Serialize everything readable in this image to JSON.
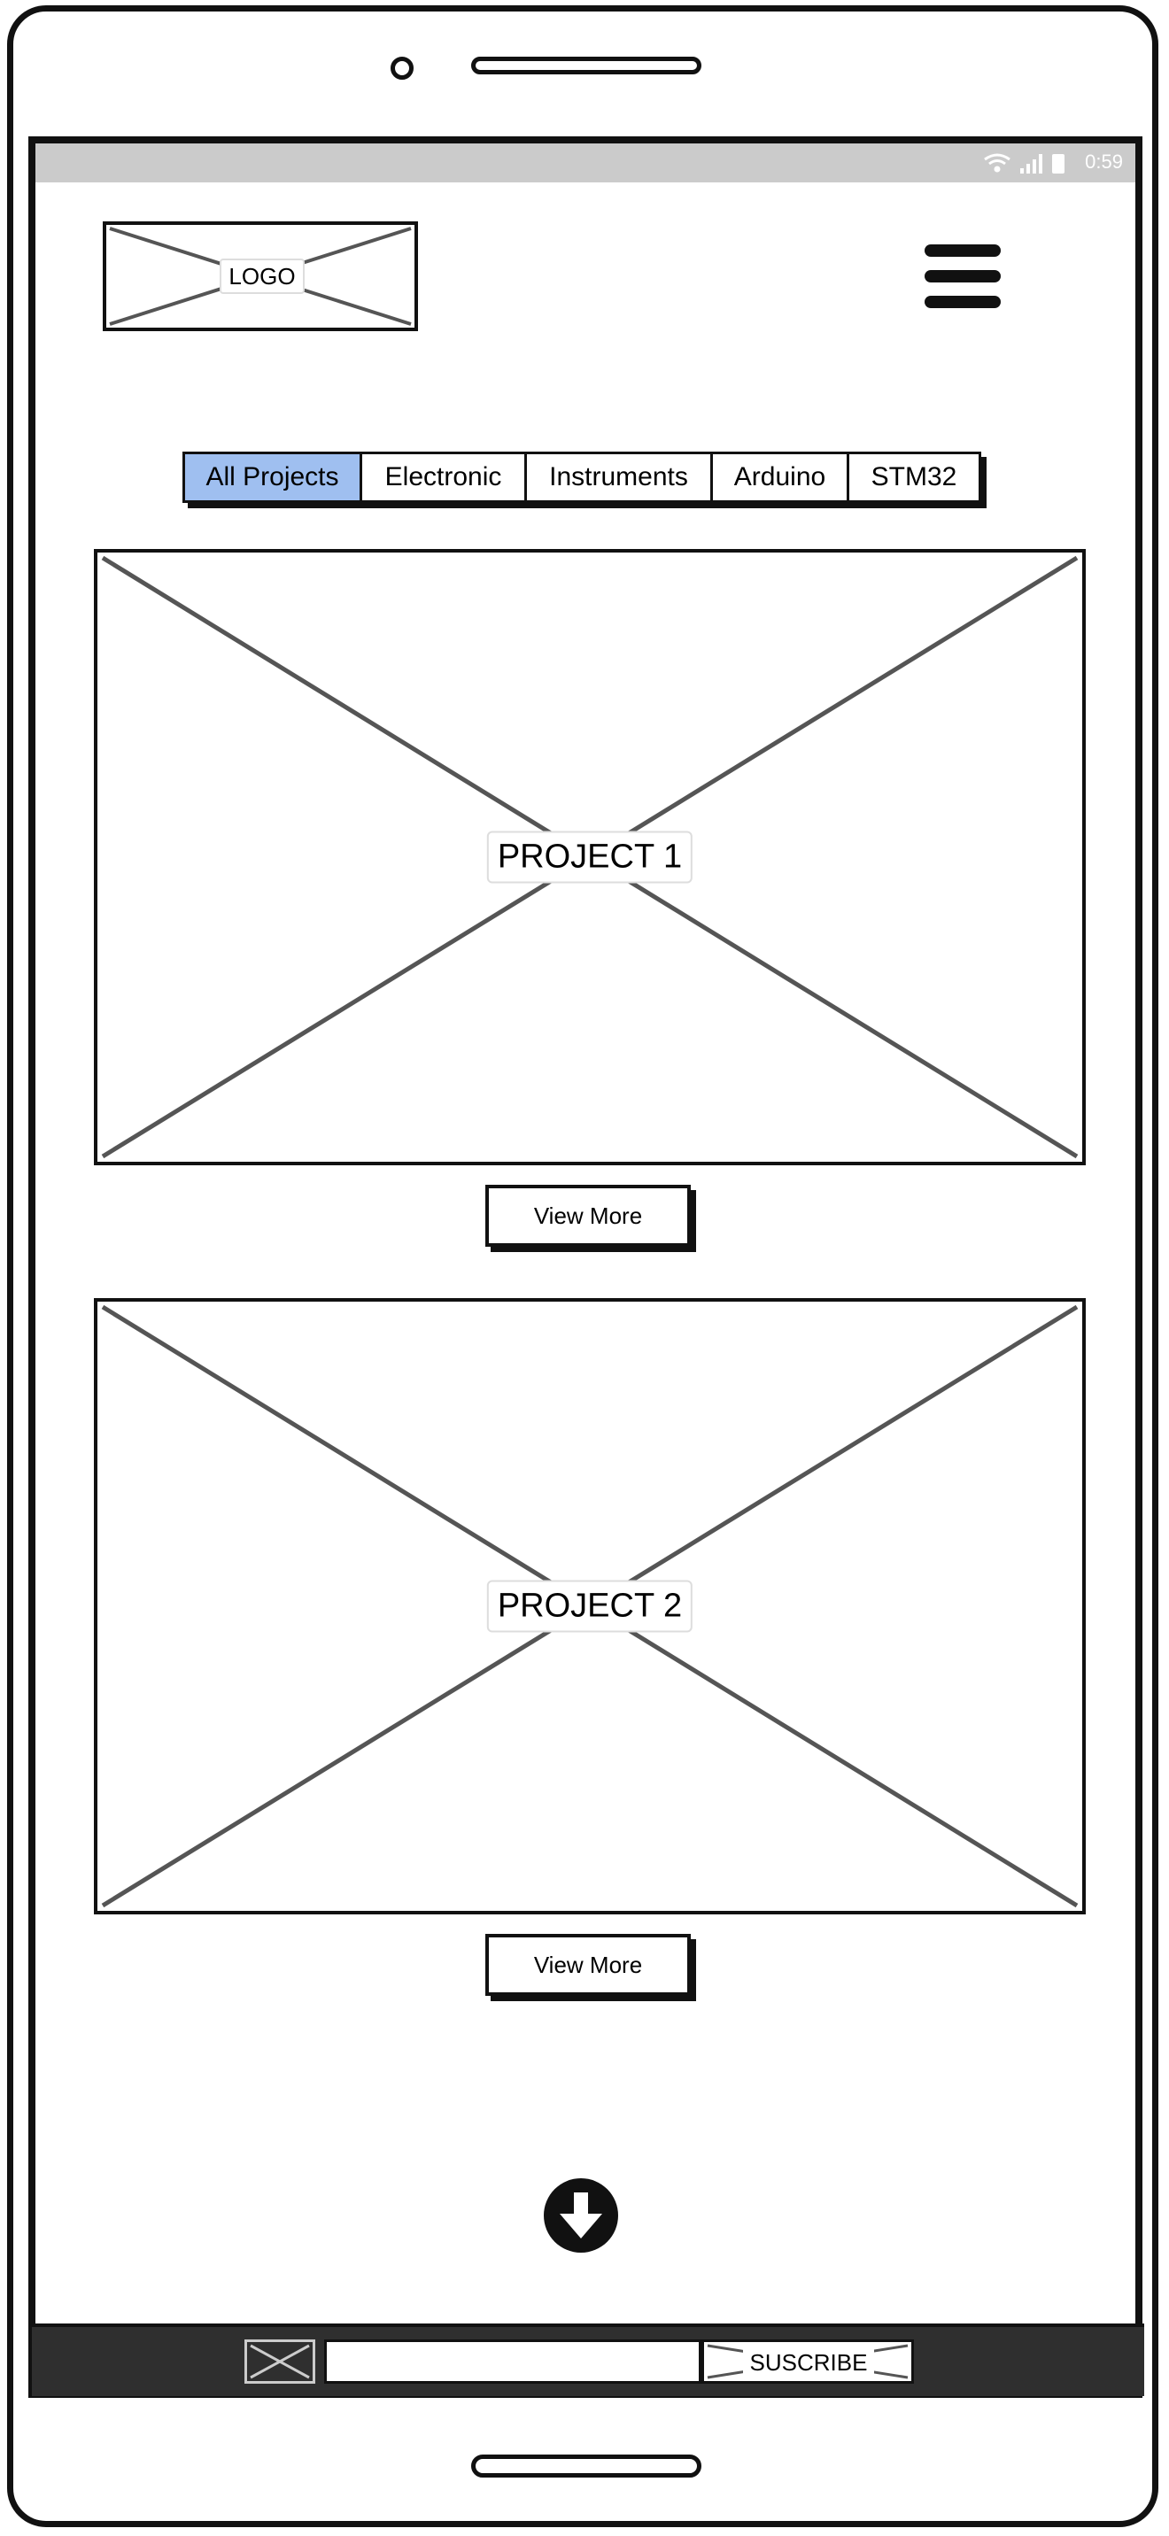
{
  "status_bar": {
    "time": "0:59",
    "icons": [
      "wifi-icon",
      "signal-icon",
      "battery-icon"
    ]
  },
  "header": {
    "logo_text": "LOGO",
    "menu_icon": "hamburger-menu-icon"
  },
  "filter_tabs": [
    {
      "label": "All Projects",
      "active": true
    },
    {
      "label": "Electronic",
      "active": false
    },
    {
      "label": "Instruments",
      "active": false
    },
    {
      "label": "Arduino",
      "active": false
    },
    {
      "label": "STM32",
      "active": false
    }
  ],
  "projects": [
    {
      "title": "PROJECT 1",
      "button_label": "View More"
    },
    {
      "title": "PROJECT 2",
      "button_label": "View More"
    }
  ],
  "scroll_icon": "arrow-down-circle-icon",
  "footer": {
    "subscribe_button": "SUSCRIBE",
    "input_value": ""
  },
  "colors": {
    "active_tab": "#9fbff0",
    "status_bar": "#cbcbcb",
    "footer": "#2f2f2f"
  }
}
